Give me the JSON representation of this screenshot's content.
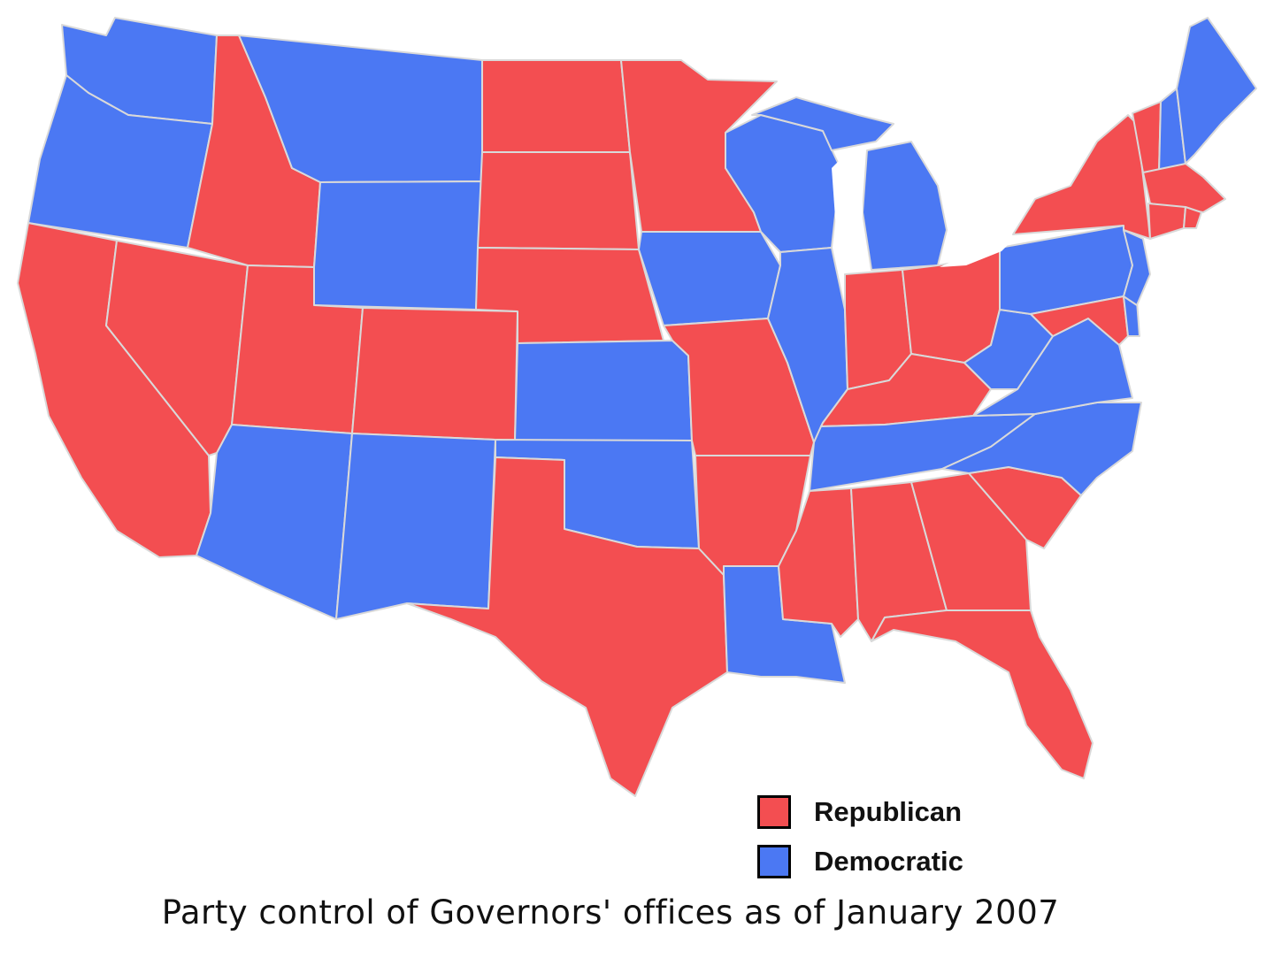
{
  "colors": {
    "republican": "#f34e51",
    "democratic": "#4b78f3",
    "border": "#d9d9d9",
    "lakes": "#ffffff"
  },
  "legend": {
    "items": [
      {
        "label": "Republican",
        "party": "republican"
      },
      {
        "label": "Democratic",
        "party": "democratic"
      }
    ]
  },
  "caption": "Party control of Governors' offices as of January 2007",
  "states": [
    {
      "id": "WA",
      "party": "democratic"
    },
    {
      "id": "OR",
      "party": "democratic"
    },
    {
      "id": "CA",
      "party": "republican"
    },
    {
      "id": "NV",
      "party": "republican"
    },
    {
      "id": "ID",
      "party": "republican"
    },
    {
      "id": "MT",
      "party": "democratic"
    },
    {
      "id": "WY",
      "party": "democratic"
    },
    {
      "id": "UT",
      "party": "republican"
    },
    {
      "id": "CO",
      "party": "republican"
    },
    {
      "id": "AZ",
      "party": "democratic"
    },
    {
      "id": "NM",
      "party": "democratic"
    },
    {
      "id": "ND",
      "party": "republican"
    },
    {
      "id": "SD",
      "party": "republican"
    },
    {
      "id": "NE",
      "party": "republican"
    },
    {
      "id": "KS",
      "party": "democratic"
    },
    {
      "id": "OK",
      "party": "democratic"
    },
    {
      "id": "TX",
      "party": "republican"
    },
    {
      "id": "MN",
      "party": "republican"
    },
    {
      "id": "IA",
      "party": "democratic"
    },
    {
      "id": "MO",
      "party": "republican"
    },
    {
      "id": "AR",
      "party": "republican"
    },
    {
      "id": "LA",
      "party": "democratic"
    },
    {
      "id": "WI",
      "party": "democratic"
    },
    {
      "id": "IL",
      "party": "democratic"
    },
    {
      "id": "MI",
      "party": "democratic"
    },
    {
      "id": "IN",
      "party": "republican"
    },
    {
      "id": "OH",
      "party": "republican"
    },
    {
      "id": "KY",
      "party": "republican"
    },
    {
      "id": "TN",
      "party": "democratic"
    },
    {
      "id": "MS",
      "party": "republican"
    },
    {
      "id": "AL",
      "party": "republican"
    },
    {
      "id": "GA",
      "party": "republican"
    },
    {
      "id": "FL",
      "party": "republican"
    },
    {
      "id": "SC",
      "party": "republican"
    },
    {
      "id": "NC",
      "party": "democratic"
    },
    {
      "id": "VA",
      "party": "democratic"
    },
    {
      "id": "WV",
      "party": "democratic"
    },
    {
      "id": "PA",
      "party": "democratic"
    },
    {
      "id": "NY",
      "party": "republican"
    },
    {
      "id": "VT",
      "party": "republican"
    },
    {
      "id": "NH",
      "party": "democratic"
    },
    {
      "id": "ME",
      "party": "democratic"
    },
    {
      "id": "MA",
      "party": "republican"
    },
    {
      "id": "CT",
      "party": "republican"
    },
    {
      "id": "RI",
      "party": "republican"
    },
    {
      "id": "NJ",
      "party": "democratic"
    },
    {
      "id": "DE",
      "party": "democratic"
    },
    {
      "id": "MD",
      "party": "republican"
    }
  ]
}
